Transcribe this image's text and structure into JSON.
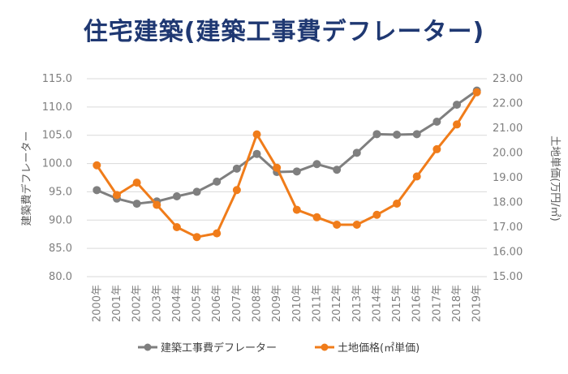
{
  "chart_data": {
    "type": "line",
    "title": "住宅建築(建築工事費デフレーター)",
    "categories": [
      "2000年",
      "2001年",
      "2002年",
      "2003年",
      "2004年",
      "2005年",
      "2006年",
      "2007年",
      "2008年",
      "2009年",
      "2010年",
      "2011年",
      "2012年",
      "2013年",
      "2014年",
      "2015年",
      "2016年",
      "2017年",
      "2018年",
      "2019年"
    ],
    "left_axis": {
      "label": "建築費デフレーター",
      "ylim": [
        80,
        115
      ],
      "ticks": [
        "80.0",
        "85.0",
        "90.0",
        "95.0",
        "100.0",
        "105.0",
        "110.0",
        "115.0"
      ]
    },
    "right_axis": {
      "label": "土地単価(万円/㎡)",
      "ylim": [
        15,
        23
      ],
      "ticks": [
        "15.00",
        "16.00",
        "17.00",
        "18.00",
        "19.00",
        "20.00",
        "21.00",
        "22.00",
        "23.00"
      ]
    },
    "grid": true,
    "legend_position": "bottom",
    "series": [
      {
        "name": "建築工事費デフレーター",
        "axis": "left",
        "color": "#7f7f7f",
        "values": [
          95.3,
          93.8,
          92.9,
          93.3,
          94.2,
          95.0,
          96.8,
          99.1,
          101.7,
          98.5,
          98.6,
          99.9,
          98.9,
          101.9,
          105.2,
          105.1,
          105.2,
          107.4,
          110.4,
          112.9
        ]
      },
      {
        "name": "土地価格(㎡単価)",
        "axis": "right",
        "color": "#f07c1a",
        "values": [
          19.5,
          18.3,
          18.8,
          17.9,
          17.0,
          16.6,
          16.75,
          18.5,
          20.75,
          19.4,
          17.7,
          17.4,
          17.1,
          17.1,
          17.5,
          17.95,
          19.05,
          20.15,
          21.15,
          22.45
        ]
      }
    ]
  }
}
